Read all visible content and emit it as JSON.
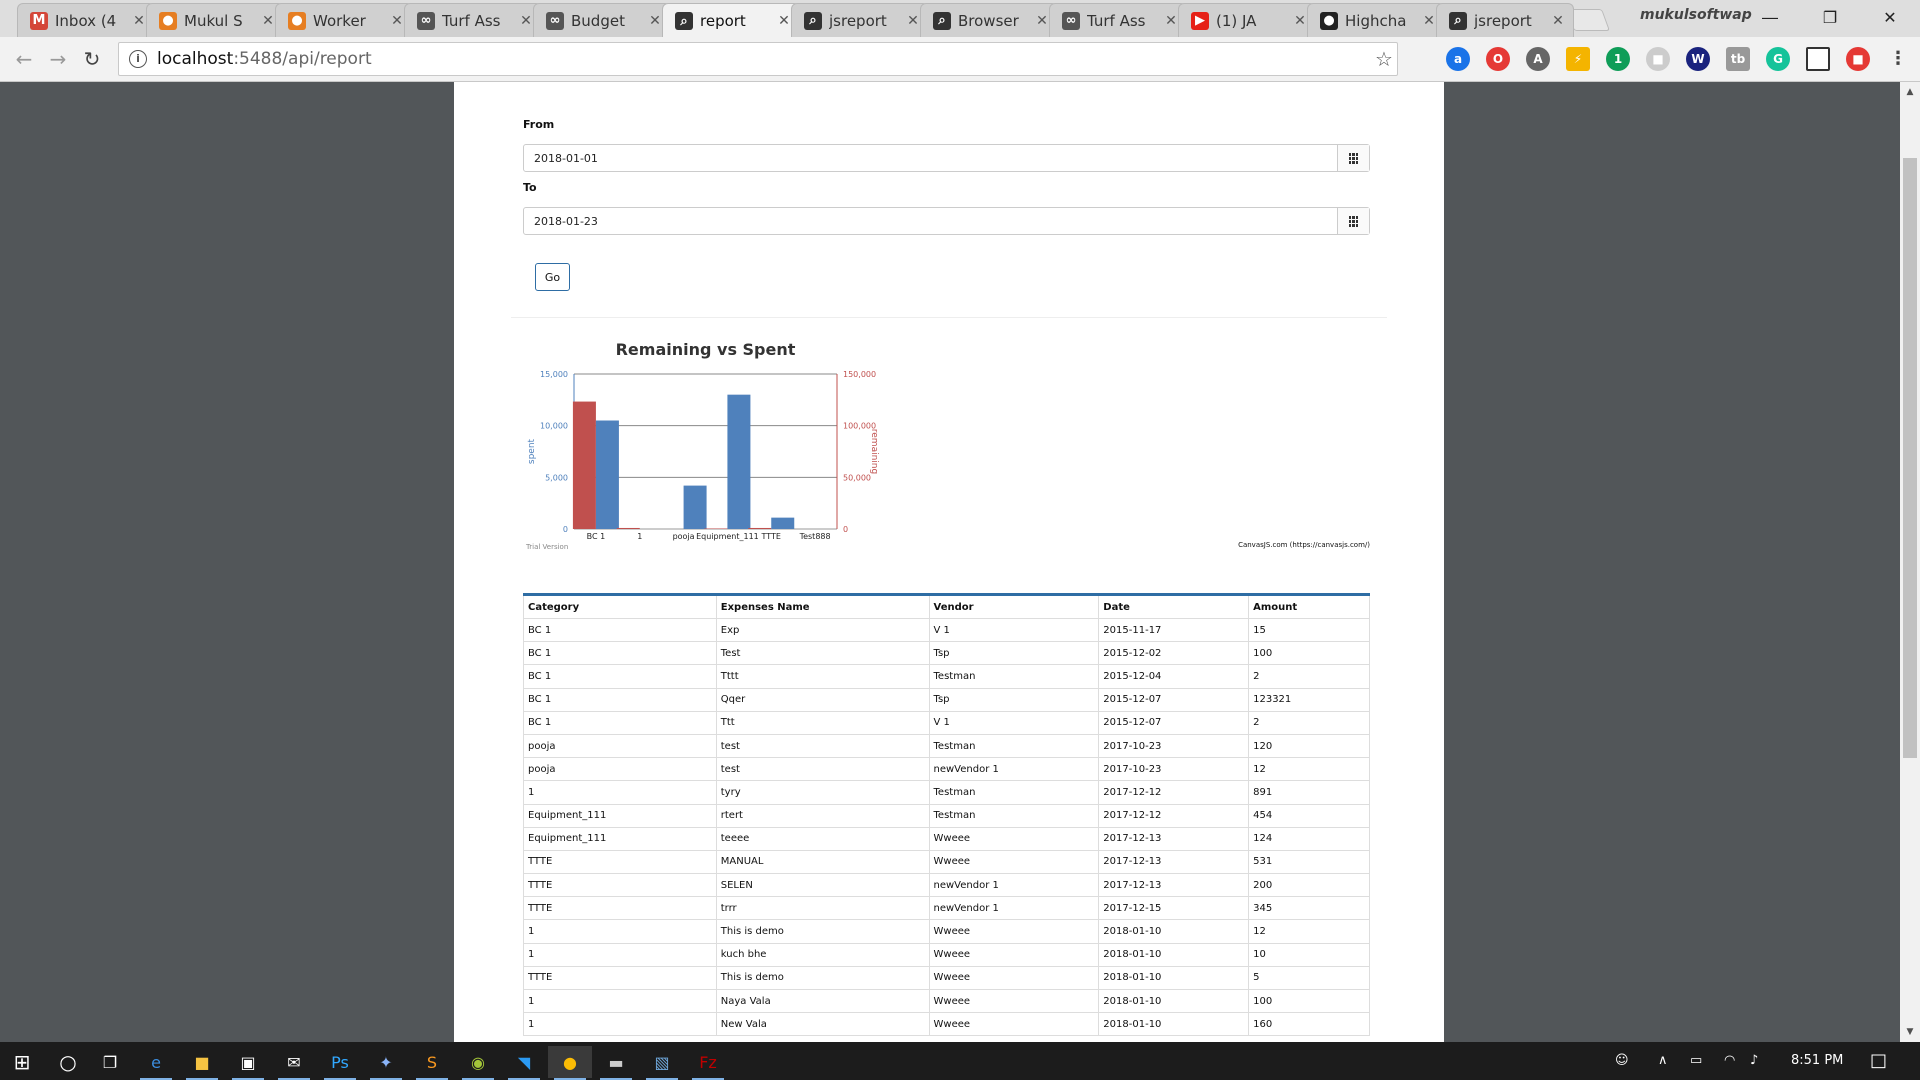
{
  "browser": {
    "tabs": [
      {
        "label": "Inbox (4",
        "icon": "gmail-icon",
        "color": "#d44638",
        "glyph": "M"
      },
      {
        "label": "Mukul S",
        "icon": "app-icon",
        "color": "#e67e22",
        "glyph": "●"
      },
      {
        "label": "Worker",
        "icon": "app-icon",
        "color": "#e67e22",
        "glyph": "●"
      },
      {
        "label": "Turf Ass",
        "icon": "glasses-icon",
        "color": "#555555",
        "glyph": "∞"
      },
      {
        "label": "Budget",
        "icon": "glasses-icon",
        "color": "#555555",
        "glyph": "∞"
      },
      {
        "label": "report",
        "icon": "jsreport-icon",
        "color": "#333333",
        "glyph": "⌕"
      },
      {
        "label": "jsreport",
        "icon": "jsreport-icon",
        "color": "#333333",
        "glyph": "⌕"
      },
      {
        "label": "Browser",
        "icon": "jsreport-icon",
        "color": "#333333",
        "glyph": "⌕"
      },
      {
        "label": "Turf Ass",
        "icon": "glasses-icon",
        "color": "#555555",
        "glyph": "∞"
      },
      {
        "label": "(1) JA",
        "icon": "youtube-icon",
        "color": "#e62117",
        "glyph": "▶"
      },
      {
        "label": "Highcha",
        "icon": "github-icon",
        "color": "#222222",
        "glyph": "●"
      },
      {
        "label": "jsreport",
        "icon": "jsreport-icon",
        "color": "#333333",
        "glyph": "⌕"
      }
    ],
    "active_tab_index": 5,
    "profile_name": "mukulsoftwap",
    "address": {
      "host": "localhost",
      "path": ":5488/api/report"
    }
  },
  "form": {
    "from_label": "From",
    "from_value": "2018-01-01",
    "to_label": "To",
    "to_value": "2018-01-23",
    "go_label": "Go"
  },
  "chart_data": {
    "type": "bar",
    "title": "Remaining vs Spent",
    "categories": [
      "BC 1",
      "1",
      "pooja",
      "Equipment_111",
      "TTTE",
      "Test888"
    ],
    "series": [
      {
        "name": "remaining",
        "axis": "right",
        "color": "#c0504e",
        "values": [
          123321,
          1000,
          0,
          500,
          1000,
          0
        ]
      },
      {
        "name": "spent",
        "axis": "left",
        "color": "#4f81bc",
        "values": [
          10500,
          0,
          4200,
          13000,
          1100,
          0
        ]
      }
    ],
    "ylabel_left": "spent",
    "ylabel_right": "remaining",
    "ylim_left": [
      0,
      15000
    ],
    "ylim_right": [
      0,
      150000
    ],
    "yticks_left": [
      "0",
      "5,000",
      "10,000",
      "15,000"
    ],
    "yticks_right": [
      "0",
      "50,000",
      "100,000",
      "150,000"
    ],
    "watermark_left": "Trial Version",
    "watermark_right": "CanvasJS.com (https://canvasjs.com/)",
    "grid": true
  },
  "table": {
    "headers": [
      "Category",
      "Expenses Name",
      "Vendor",
      "Date",
      "Amount"
    ],
    "rows": [
      [
        "BC 1",
        "Exp",
        "V 1",
        "2015-11-17",
        "15"
      ],
      [
        "BC 1",
        "Test",
        "Tsp",
        "2015-12-02",
        "100"
      ],
      [
        "BC 1",
        "Tttt",
        "Testman",
        "2015-12-04",
        "2"
      ],
      [
        "BC 1",
        "Qqer",
        "Tsp",
        "2015-12-07",
        "123321"
      ],
      [
        "BC 1",
        "Ttt",
        "V 1",
        "2015-12-07",
        "2"
      ],
      [
        "pooja",
        "test",
        "Testman",
        "2017-10-23",
        "120"
      ],
      [
        "pooja",
        "test",
        "newVendor 1",
        "2017-10-23",
        "12"
      ],
      [
        "1",
        "tyry",
        "Testman",
        "2017-12-12",
        "891"
      ],
      [
        "Equipment_111",
        "rtert",
        "Testman",
        "2017-12-12",
        "454"
      ],
      [
        "Equipment_111",
        "teeee",
        "Wweee",
        "2017-12-13",
        "124"
      ],
      [
        "TTTE",
        "MANUAL",
        "Wweee",
        "2017-12-13",
        "531"
      ],
      [
        "TTTE",
        "SELEN",
        "newVendor 1",
        "2017-12-13",
        "200"
      ],
      [
        "TTTE",
        "trrr",
        "newVendor 1",
        "2017-12-15",
        "345"
      ],
      [
        "1",
        "This is demo",
        "Wweee",
        "2018-01-10",
        "12"
      ],
      [
        "1",
        "kuch bhe",
        "Wweee",
        "2018-01-10",
        "10"
      ],
      [
        "TTTE",
        "This is demo",
        "Wweee",
        "2018-01-10",
        "5"
      ],
      [
        "1",
        "Naya Vala",
        "Wweee",
        "2018-01-10",
        "100"
      ],
      [
        "1",
        "New Vala",
        "Wweee",
        "2018-01-10",
        "160"
      ]
    ]
  },
  "taskbar": {
    "clock": "8:51 PM",
    "apps": [
      {
        "name": "task-view-icon",
        "glyph": "❐",
        "color": "#ffffff"
      },
      {
        "name": "edge-icon",
        "glyph": "e",
        "color": "#3c8dde"
      },
      {
        "name": "file-explorer-icon",
        "glyph": "■",
        "color": "#f5c342"
      },
      {
        "name": "store-icon",
        "glyph": "▣",
        "color": "#ffffff"
      },
      {
        "name": "mail-icon",
        "glyph": "✉",
        "color": "#ffffff"
      },
      {
        "name": "photoshop-icon",
        "glyph": "Ps",
        "color": "#31a8ff"
      },
      {
        "name": "network-tool-icon",
        "glyph": "✦",
        "color": "#8ab4f8"
      },
      {
        "name": "sublime-icon",
        "glyph": "S",
        "color": "#f89820"
      },
      {
        "name": "android-icon",
        "glyph": "◉",
        "color": "#a4c639"
      },
      {
        "name": "vscode-icon",
        "glyph": "◥",
        "color": "#2b9af3"
      },
      {
        "name": "chrome-icon",
        "glyph": "●",
        "color": "#fbbc05"
      },
      {
        "name": "terminal-icon",
        "glyph": "▬",
        "color": "#cccccc"
      },
      {
        "name": "ssms-icon",
        "glyph": "▧",
        "color": "#6fa8dc"
      },
      {
        "name": "filezilla-icon",
        "glyph": "Fz",
        "color": "#bf0000"
      }
    ]
  }
}
